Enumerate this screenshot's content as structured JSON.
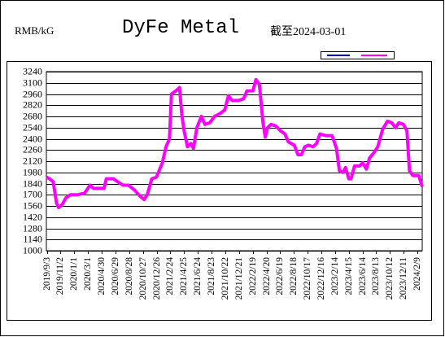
{
  "chart_data": {
    "type": "line",
    "title": "DyFe Metal",
    "unit_label": "RMB/kG",
    "date_note": "截至2024-03-01",
    "color": "#ff00ff",
    "x": [
      "2019/9/1",
      "2019/9/15",
      "2019/10/1",
      "2019/10/15",
      "2019/10/25",
      "2019/11/10",
      "2019/11/25",
      "2019/12/15",
      "2020/1/15",
      "2020/2/15",
      "2020/3/10",
      "2020/3/25",
      "2020/4/20",
      "2020/5/10",
      "2020/5/20",
      "2020/6/20",
      "2020/7/10",
      "2020/8/1",
      "2020/8/25",
      "2020/9/20",
      "2020/10/15",
      "2020/11/1",
      "2020/11/15",
      "2020/12/5",
      "2020/12/25",
      "2021/1/20",
      "2021/2/5",
      "2021/2/20",
      "2021/3/1",
      "2021/3/20",
      "2021/4/5",
      "2021/4/15",
      "2021/4/25",
      "2021/5/10",
      "2021/5/25",
      "2021/6/5",
      "2021/6/20",
      "2021/7/10",
      "2021/7/25",
      "2021/8/15",
      "2021/9/5",
      "2021/10/1",
      "2021/10/20",
      "2021/11/5",
      "2021/11/20",
      "2021/12/20",
      "2022/1/10",
      "2022/1/25",
      "2022/2/20",
      "2022/3/5",
      "2022/3/20",
      "2022/4/5",
      "2022/4/15",
      "2022/4/25",
      "2022/5/10",
      "2022/6/1",
      "2022/6/20",
      "2022/7/10",
      "2022/7/25",
      "2022/8/20",
      "2022/9/5",
      "2022/9/20",
      "2022/10/5",
      "2022/10/20",
      "2022/11/10",
      "2022/11/25",
      "2022/12/10",
      "2023/1/5",
      "2023/2/1",
      "2023/2/20",
      "2023/3/5",
      "2023/3/20",
      "2023/4/1",
      "2023/4/15",
      "2023/4/25",
      "2023/5/10",
      "2023/6/1",
      "2023/6/15",
      "2023/7/1",
      "2023/7/15",
      "2023/8/1",
      "2023/8/20",
      "2023/9/10",
      "2023/10/1",
      "2023/10/20",
      "2023/11/5",
      "2023/11/20",
      "2023/12/10",
      "2023/12/25",
      "2024/1/5",
      "2024/1/20",
      "2024/2/15",
      "2024/3/1"
    ],
    "values": [
      1920,
      1900,
      1860,
      1600,
      1540,
      1580,
      1660,
      1700,
      1700,
      1720,
      1820,
      1780,
      1780,
      1780,
      1900,
      1900,
      1860,
      1820,
      1820,
      1760,
      1680,
      1640,
      1700,
      1900,
      1920,
      2100,
      2300,
      2400,
      2960,
      3000,
      3040,
      2700,
      2500,
      2300,
      2340,
      2280,
      2540,
      2680,
      2580,
      2600,
      2680,
      2720,
      2760,
      2940,
      2880,
      2880,
      2900,
      3000,
      3000,
      3140,
      3080,
      2600,
      2420,
      2540,
      2580,
      2560,
      2500,
      2460,
      2360,
      2320,
      2200,
      2200,
      2300,
      2320,
      2300,
      2340,
      2460,
      2440,
      2440,
      2280,
      2000,
      1980,
      2040,
      1900,
      1900,
      2060,
      2060,
      2100,
      2020,
      2160,
      2220,
      2300,
      2520,
      2620,
      2600,
      2540,
      2600,
      2580,
      2500,
      2000,
      1940,
      1940,
      1800
    ],
    "xticks": [
      "2019/9/3",
      "2019/11/2",
      "2020/1/1",
      "2020/3/1",
      "2020/4/30",
      "2020/6/29",
      "2020/8/28",
      "2020/10/27",
      "2020/12/26",
      "2021/2/24",
      "2021/4/25",
      "2021/6/24",
      "2021/8/23",
      "2021/10/22",
      "2021/12/21",
      "2022/2/19",
      "2022/4/20",
      "2022/6/19",
      "2022/8/18",
      "2022/10/17",
      "2022/12/16",
      "2023/2/14",
      "2023/4/15",
      "2023/6/14",
      "2023/8/13",
      "2023/10/12",
      "2023/12/11",
      "2024/2/9"
    ],
    "ylim": [
      1000,
      3240
    ],
    "yticks": [
      1000,
      1140,
      1280,
      1420,
      1560,
      1700,
      1840,
      1980,
      2120,
      2260,
      2400,
      2540,
      2680,
      2820,
      2960,
      3100,
      3240
    ],
    "grid": true
  }
}
